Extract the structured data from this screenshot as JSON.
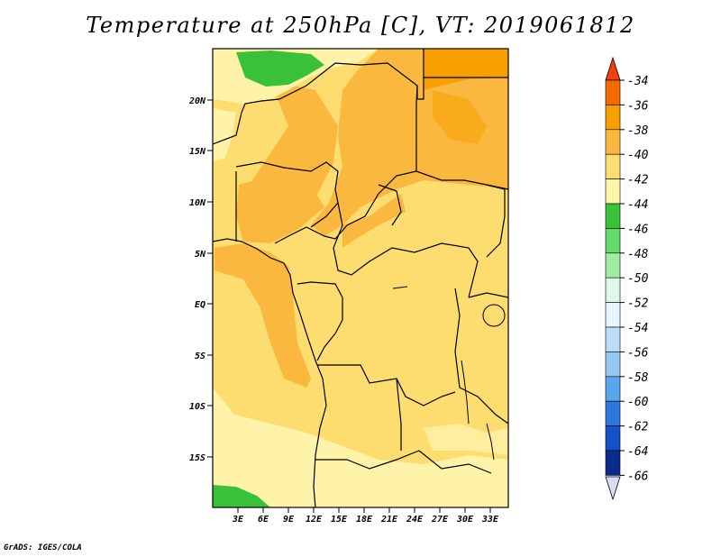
{
  "title": "Temperature at 250hPa [C], VT: 2019061812",
  "footer": "GrADS: IGES/COLA",
  "map": {
    "lat_labels": [
      "20N",
      "15N",
      "10N",
      "5N",
      "EQ",
      "5S",
      "10S",
      "15S"
    ],
    "lon_labels": [
      "3E",
      "6E",
      "9E",
      "12E",
      "15E",
      "18E",
      "21E",
      "24E",
      "27E",
      "30E",
      "33E"
    ],
    "lat_range": [
      -20,
      25
    ],
    "lon_range": [
      0,
      35
    ]
  },
  "colorbar": {
    "levels": [
      "-34",
      "-36",
      "-38",
      "-40",
      "-42",
      "-44",
      "-46",
      "-48",
      "-50",
      "-52",
      "-54",
      "-56",
      "-58",
      "-60",
      "-62",
      "-64",
      "-66"
    ],
    "colors": [
      "#f04010",
      "#f36a00",
      "#f7a000",
      "#fab83e",
      "#fddc70",
      "#fff3aa",
      "#39c13a",
      "#63d96a",
      "#a0eca0",
      "#dff8e6",
      "#e8f5ff",
      "#bcdcf7",
      "#96c8f0",
      "#5aa6ea",
      "#2d78dc",
      "#1450c8",
      "#0c2a8c",
      "#0a0a6e"
    ],
    "top_color": "#f04010",
    "bottom_color": "#dcdcf8"
  }
}
